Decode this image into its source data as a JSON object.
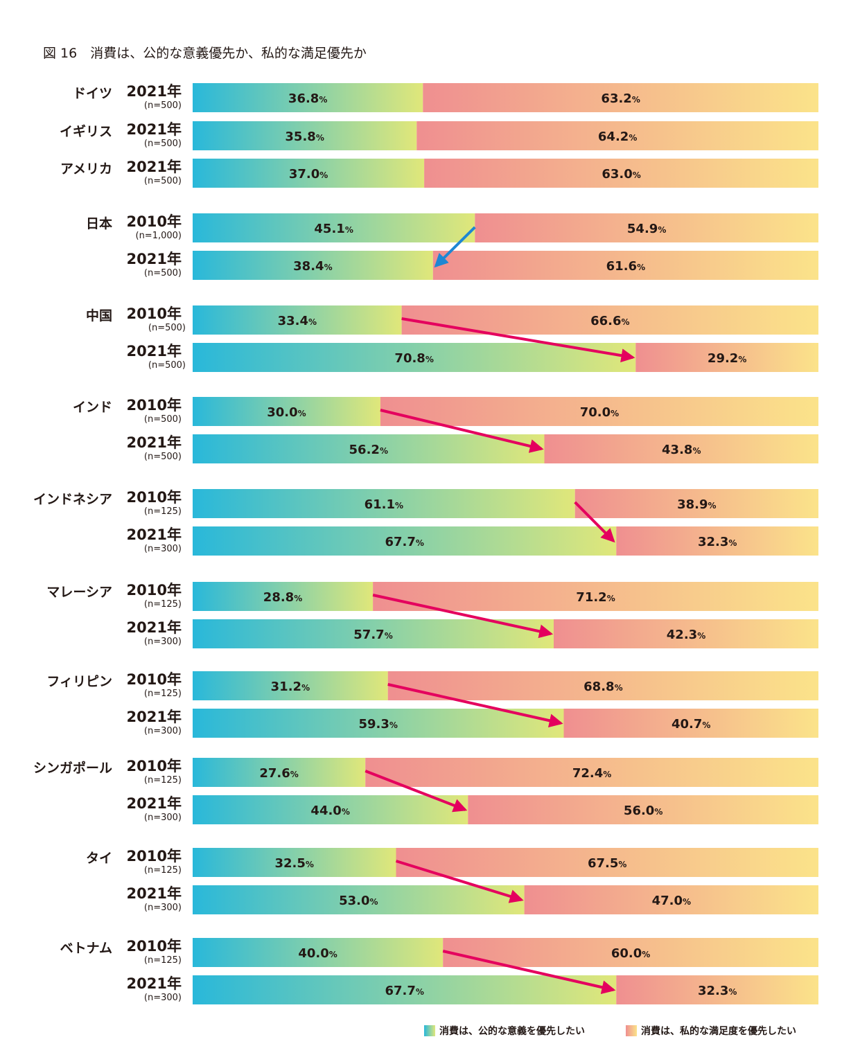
{
  "title": "図 16　消費は、公的な意義優先か、私的な満足優先か",
  "colors": {
    "public_start": "#29B8DA",
    "public_end": "#E0E77A",
    "private_start": "#EF8F90",
    "private_end": "#FBE38A",
    "highlight_text": "#E4007F",
    "arrow_pink": "#E4005E",
    "arrow_blue": "#1E87D3"
  },
  "legend": {
    "public": "消費は、公的な意義を優先したい",
    "private": "消費は、私的な満足度を優先したい"
  },
  "chart_data": {
    "type": "bar",
    "stacked": true,
    "orientation": "horizontal",
    "xlim": [
      0,
      100
    ],
    "series": [
      {
        "name": "消費は、公的な意義を優先したい",
        "key": "public"
      },
      {
        "name": "消費は、私的な満足度を優先したい",
        "key": "private"
      }
    ],
    "groups": [
      {
        "country": "ドイツ",
        "rows": [
          {
            "year": "2021年",
            "n": "(n=500)",
            "public": 36.8,
            "private": 63.2
          }
        ]
      },
      {
        "country": "イギリス",
        "rows": [
          {
            "year": "2021年",
            "n": "(n=500)",
            "public": 35.8,
            "private": 64.2
          }
        ]
      },
      {
        "country": "アメリカ",
        "rows": [
          {
            "year": "2021年",
            "n": "(n=500)",
            "public": 37.0,
            "private": 63.0
          }
        ]
      },
      {
        "country": "日本",
        "highlight": true,
        "arrow": "blue",
        "rows": [
          {
            "year": "2010年",
            "n": "(n=1,000)",
            "public": 45.1,
            "private": 54.9
          },
          {
            "year": "2021年",
            "n": "(n=500)",
            "public": 38.4,
            "private": 61.6
          }
        ]
      },
      {
        "country": "中国",
        "arrow": "pink",
        "rows": [
          {
            "year": "2010年",
            "n": "(n=500)",
            "public": 33.4,
            "private": 66.6
          },
          {
            "year": "2021年",
            "n": "(n=500)",
            "public": 70.8,
            "private": 29.2
          }
        ]
      },
      {
        "country": "インド",
        "arrow": "pink",
        "rows": [
          {
            "year": "2010年",
            "n": "(n=500)",
            "public": 30.0,
            "private": 70.0
          },
          {
            "year": "2021年",
            "n": "(n=500)",
            "public": 56.2,
            "private": 43.8
          }
        ]
      },
      {
        "country": "インドネシア",
        "arrow": "pink",
        "rows": [
          {
            "year": "2010年",
            "n": "(n=125)",
            "public": 61.1,
            "private": 38.9
          },
          {
            "year": "2021年",
            "n": "(n=300)",
            "public": 67.7,
            "private": 32.3
          }
        ]
      },
      {
        "country": "マレーシア",
        "arrow": "pink",
        "rows": [
          {
            "year": "2010年",
            "n": "(n=125)",
            "public": 28.8,
            "private": 71.2
          },
          {
            "year": "2021年",
            "n": "(n=300)",
            "public": 57.7,
            "private": 42.3
          }
        ]
      },
      {
        "country": "フィリピン",
        "arrow": "pink",
        "rows": [
          {
            "year": "2010年",
            "n": "(n=125)",
            "public": 31.2,
            "private": 68.8
          },
          {
            "year": "2021年",
            "n": "(n=300)",
            "public": 59.3,
            "private": 40.7
          }
        ]
      },
      {
        "country": "シンガポール",
        "arrow": "pink",
        "rows": [
          {
            "year": "2010年",
            "n": "(n=125)",
            "public": 27.6,
            "private": 72.4
          },
          {
            "year": "2021年",
            "n": "(n=300)",
            "public": 44.0,
            "private": 56.0
          }
        ]
      },
      {
        "country": "タイ",
        "arrow": "pink",
        "rows": [
          {
            "year": "2010年",
            "n": "(n=125)",
            "public": 32.5,
            "private": 67.5
          },
          {
            "year": "2021年",
            "n": "(n=300)",
            "public": 53.0,
            "private": 47.0
          }
        ]
      },
      {
        "country": "ベトナム",
        "arrow": "pink",
        "rows": [
          {
            "year": "2010年",
            "n": "(n=125)",
            "public": 40.0,
            "private": 60.0
          },
          {
            "year": "2021年",
            "n": "(n=300)",
            "public": 67.7,
            "private": 32.3
          }
        ]
      }
    ]
  }
}
